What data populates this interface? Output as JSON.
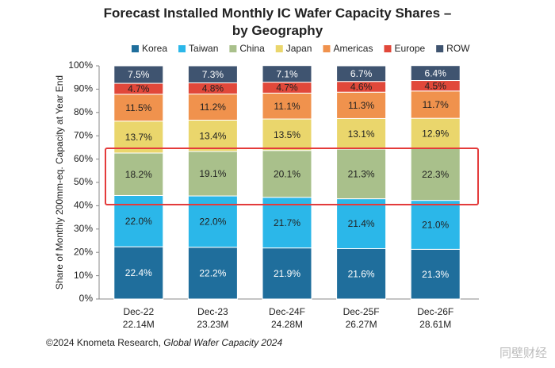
{
  "chart_data": {
    "type": "stacked-bar",
    "title": "Forecast Installed Monthly IC Wafer Capacity Shares – by Geography",
    "y_label": "Share of Monthly 200mm-eq. Capacity at Year End",
    "categories": [
      "Dec-22",
      "Dec-23",
      "Dec-24F",
      "Dec-25F",
      "Dec-26F"
    ],
    "category_sublabels": [
      "22.14M",
      "23.23M",
      "24.28M",
      "26.27M",
      "28.61M"
    ],
    "series": [
      {
        "name": "Korea",
        "color": "#1f6e9c",
        "label_color": "#ffffff",
        "values": [
          22.4,
          22.2,
          21.9,
          21.6,
          21.3
        ],
        "value_labels": [
          "22.4%",
          "22.2%",
          "21.9%",
          "21.6%",
          "21.3%"
        ]
      },
      {
        "name": "Taiwan",
        "color": "#2bb7e9",
        "label_color": "#222222",
        "values": [
          22.0,
          22.0,
          21.7,
          21.4,
          21.0
        ],
        "value_labels": [
          "22.0%",
          "22.0%",
          "21.7%",
          "21.4%",
          "21.0%"
        ]
      },
      {
        "name": "China",
        "color": "#a9c08b",
        "label_color": "#222222",
        "values": [
          18.2,
          19.1,
          20.1,
          21.3,
          22.3
        ],
        "value_labels": [
          "18.2%",
          "19.1%",
          "20.1%",
          "21.3%",
          "22.3%"
        ]
      },
      {
        "name": "Japan",
        "color": "#ead66c",
        "label_color": "#222222",
        "values": [
          13.7,
          13.4,
          13.5,
          13.1,
          12.9
        ],
        "value_labels": [
          "13.7%",
          "13.4%",
          "13.5%",
          "13.1%",
          "12.9%"
        ]
      },
      {
        "name": "Americas",
        "color": "#f0924d",
        "label_color": "#222222",
        "values": [
          11.5,
          11.2,
          11.1,
          11.3,
          11.7
        ],
        "value_labels": [
          "11.5%",
          "11.2%",
          "11.1%",
          "11.3%",
          "11.7%"
        ]
      },
      {
        "name": "Europe",
        "color": "#e1483a",
        "label_color": "#222222",
        "values": [
          4.7,
          4.8,
          4.7,
          4.6,
          4.5
        ],
        "value_labels": [
          "4.7%",
          "4.8%",
          "4.7%",
          "4.6%",
          "4.5%"
        ]
      },
      {
        "name": "ROW",
        "color": "#3f5470",
        "label_color": "#ffffff",
        "values": [
          7.5,
          7.3,
          7.1,
          6.7,
          6.4
        ],
        "value_labels": [
          "7.5%",
          "7.3%",
          "7.1%",
          "6.7%",
          "6.4%"
        ]
      }
    ],
    "ylim": [
      0,
      100
    ],
    "yticks": [
      {
        "value": 0,
        "label": "0%"
      },
      {
        "value": 10,
        "label": "10%"
      },
      {
        "value": 20,
        "label": "20%"
      },
      {
        "value": 30,
        "label": "30%"
      },
      {
        "value": 40,
        "label": "40%"
      },
      {
        "value": 50,
        "label": "50%"
      },
      {
        "value": 60,
        "label": "60%"
      },
      {
        "value": 70,
        "label": "70%"
      },
      {
        "value": 80,
        "label": "80%"
      },
      {
        "value": 90,
        "label": "90%"
      },
      {
        "value": 100,
        "label": "100%"
      }
    ],
    "legend": "top",
    "footer": {
      "text": "©2024 Knometa Research, ",
      "italic": "Global Wafer Capacity 2024"
    },
    "watermark": "同壁财经"
  }
}
